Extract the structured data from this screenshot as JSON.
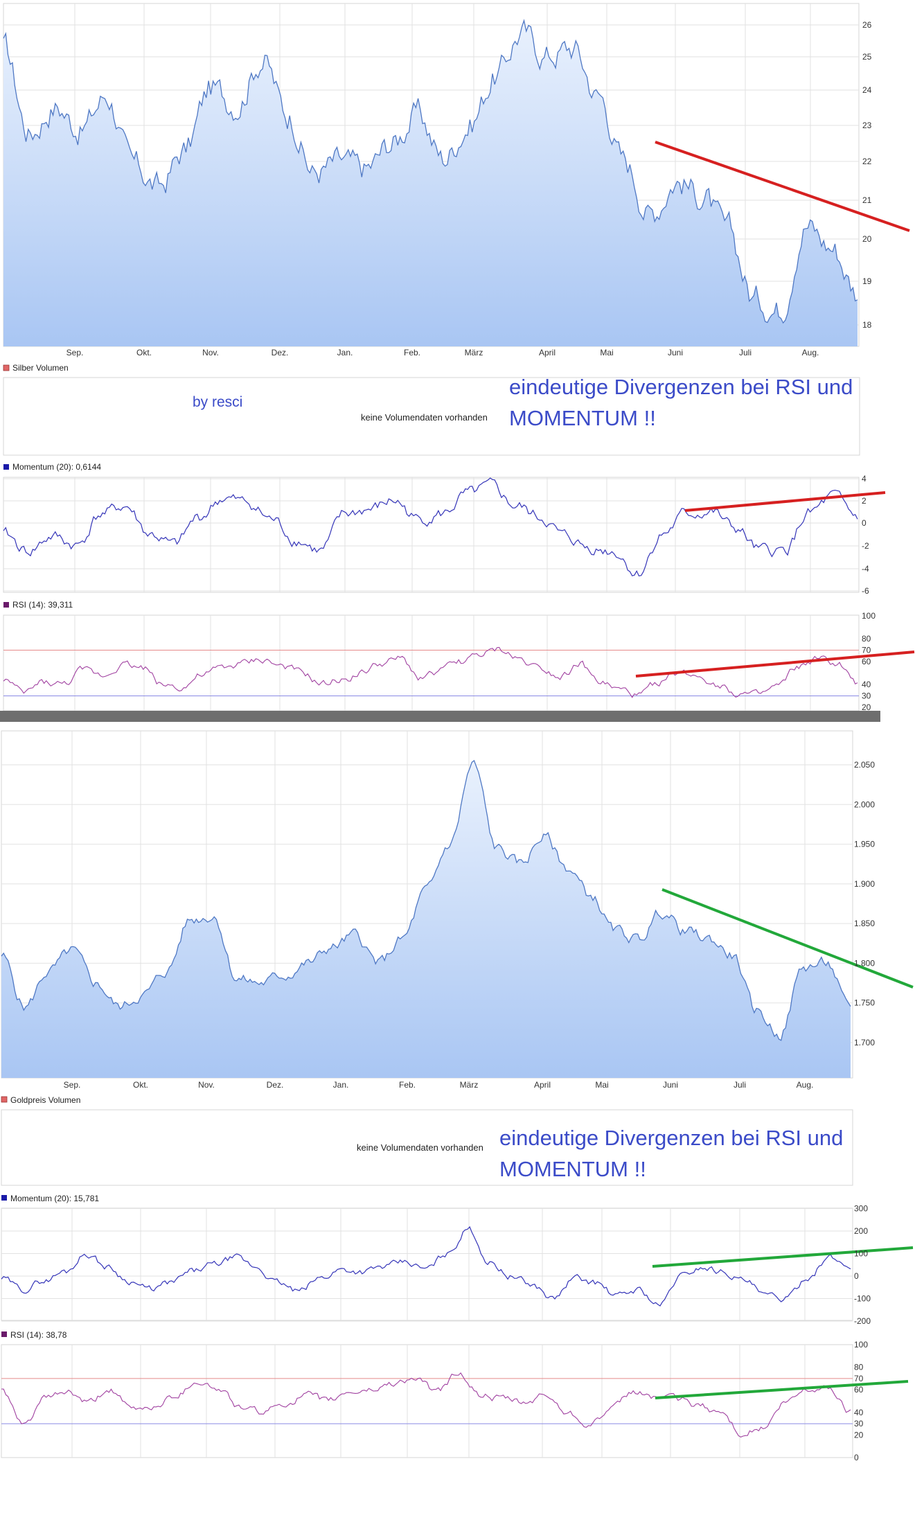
{
  "silver": {
    "volume_label": "Silber Volumen",
    "author": "by resci",
    "no_volume_text": "keine Volumendaten vorhanden",
    "annotation_line1": "eindeutige Divergenzen bei RSI und",
    "annotation_line2": "MOMENTUM !!",
    "momentum_label": "Momentum (20): 0,6144",
    "rsi_label": "RSI (14): 39,311",
    "price_ticks": [
      "26",
      "25",
      "24",
      "23",
      "22",
      "21",
      "20",
      "19",
      "18"
    ],
    "momentum_ticks": [
      "4",
      "2",
      "0",
      "-2",
      "-4",
      "-6"
    ],
    "rsi_ticks": [
      "100",
      "80",
      "70",
      "60",
      "40",
      "30",
      "20"
    ],
    "months": [
      "Sep.",
      "Okt.",
      "Nov.",
      "Dez.",
      "Jan.",
      "Feb.",
      "März",
      "April",
      "Mai",
      "Juni",
      "Juli",
      "Aug."
    ]
  },
  "gold": {
    "volume_label": "Goldpreis Volumen",
    "no_volume_text": "keine Volumendaten vorhanden",
    "annotation_line1": "eindeutige Divergenzen bei RSI und",
    "annotation_line2": "MOMENTUM !!",
    "momentum_label": "Momentum (20): 15,781",
    "rsi_label": "RSI (14): 38,78",
    "price_ticks": [
      "2.050",
      "2.000",
      "1.950",
      "1.900",
      "1.850",
      "1.800",
      "1.750",
      "1.700"
    ],
    "momentum_ticks": [
      "300",
      "200",
      "100",
      "0",
      "-100",
      "-200"
    ],
    "rsi_ticks": [
      "100",
      "80",
      "70",
      "60",
      "40",
      "30",
      "20",
      "0"
    ],
    "months": [
      "Sep.",
      "Okt.",
      "Nov.",
      "Dez.",
      "Jan.",
      "Feb.",
      "März",
      "April",
      "Mai",
      "Juni",
      "Juli",
      "Aug."
    ]
  },
  "colors": {
    "price_line": "#4f78c4",
    "momentum_line": "#3434b8",
    "rsi_line": "#a040a0",
    "silver_trend": "#d62020",
    "gold_trend": "#22a83a",
    "note": "#3b4bc8"
  },
  "chart_data": [
    {
      "type": "area",
      "title": "",
      "asset": "Silber",
      "ylim": [
        17.5,
        26.8
      ],
      "x": [
        "Sep.",
        "Okt.",
        "Nov.",
        "Dez.",
        "Jan.",
        "Feb.",
        "März",
        "April",
        "Mai",
        "Juni",
        "Juli",
        "Aug."
      ],
      "y": [
        24.5,
        22.4,
        24.2,
        22.5,
        22.4,
        23.9,
        25.3,
        24.6,
        22.6,
        22.0,
        19.3,
        20.3
      ]
    },
    {
      "type": "line",
      "title": "Momentum (20): 0,6144",
      "asset": "Silber",
      "ylim": [
        -6,
        4
      ],
      "x": [
        "Sep.",
        "Okt.",
        "Nov.",
        "Dez.",
        "Jan.",
        "Feb.",
        "März",
        "April",
        "Mai",
        "Juni",
        "Juli",
        "Aug."
      ],
      "y": [
        -1.5,
        0.5,
        1.5,
        -1.5,
        0.5,
        1.2,
        3.0,
        0.5,
        -2.5,
        0.5,
        -2.5,
        2.0
      ]
    },
    {
      "type": "line",
      "title": "RSI (14): 39,311",
      "asset": "Silber",
      "ylim": [
        20,
        100
      ],
      "x": [
        "Sep.",
        "Okt.",
        "Nov.",
        "Dez.",
        "Jan.",
        "Feb.",
        "März",
        "April",
        "Mai",
        "Juni",
        "Juli",
        "Aug."
      ],
      "y": [
        40,
        48,
        62,
        42,
        48,
        55,
        72,
        50,
        35,
        52,
        33,
        62
      ]
    },
    {
      "type": "area",
      "title": "",
      "asset": "Gold",
      "ylim": [
        1660,
        2060
      ],
      "x": [
        "Sep.",
        "Okt.",
        "Nov.",
        "Dez.",
        "Jan.",
        "Feb.",
        "März",
        "April",
        "Mai",
        "Juni",
        "Juli",
        "Aug."
      ],
      "y": [
        1805,
        1760,
        1860,
        1780,
        1805,
        1830,
        2000,
        1930,
        1880,
        1840,
        1750,
        1790
      ]
    },
    {
      "type": "line",
      "title": "Momentum (20): 15,781",
      "asset": "Gold",
      "ylim": [
        -200,
        300
      ],
      "x": [
        "Sep.",
        "Okt.",
        "Nov.",
        "Dez.",
        "Jan.",
        "Feb.",
        "März",
        "April",
        "Mai",
        "Juni",
        "Juli",
        "Aug."
      ],
      "y": [
        0,
        -40,
        80,
        -20,
        20,
        40,
        200,
        40,
        -80,
        20,
        -100,
        80
      ]
    },
    {
      "type": "line",
      "title": "RSI (14): 38,78",
      "asset": "Gold",
      "ylim": [
        0,
        100
      ],
      "x": [
        "Sep.",
        "Okt.",
        "Nov.",
        "Dez.",
        "Jan.",
        "Feb.",
        "März",
        "April",
        "Mai",
        "Juni",
        "Juli",
        "Aug."
      ],
      "y": [
        48,
        50,
        68,
        42,
        50,
        52,
        72,
        52,
        38,
        55,
        25,
        58
      ]
    }
  ]
}
